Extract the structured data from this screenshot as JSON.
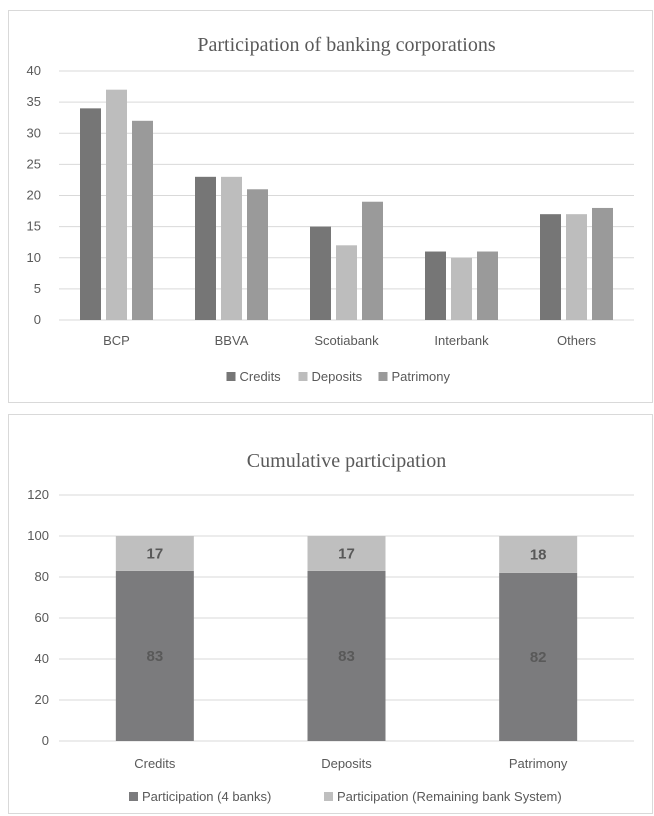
{
  "chart_data": [
    {
      "type": "bar",
      "title": "Participation of banking corporations",
      "categories": [
        "BCP",
        "BBVA",
        "Scotiabank",
        "Interbank",
        "Others"
      ],
      "series": [
        {
          "name": "Credits",
          "values": [
            34,
            23,
            15,
            11,
            17
          ],
          "color": "#767676"
        },
        {
          "name": "Deposits",
          "values": [
            37,
            23,
            12,
            10,
            17
          ],
          "color": "#bdbdbd"
        },
        {
          "name": "Patrimony",
          "values": [
            32,
            21,
            19,
            11,
            18
          ],
          "color": "#9a9a9a"
        }
      ],
      "ylim": [
        0,
        40
      ],
      "yticks": [
        0,
        5,
        10,
        15,
        20,
        25,
        30,
        35,
        40
      ],
      "grid": true,
      "legend": "bottom"
    },
    {
      "type": "bar",
      "stacked": true,
      "title": "Cumulative participation",
      "categories": [
        "Credits",
        "Deposits",
        "Patrimony"
      ],
      "series": [
        {
          "name": "Participation (4 banks)",
          "values": [
            83,
            83,
            82
          ],
          "color": "#7b7b7d"
        },
        {
          "name": "Participation (Remaining bank System)",
          "values": [
            17,
            17,
            18
          ],
          "color": "#bfbfbf"
        }
      ],
      "ylim": [
        0,
        120
      ],
      "yticks": [
        0,
        20,
        40,
        60,
        80,
        100,
        120
      ],
      "grid": true,
      "legend": "bottom",
      "data_labels": true
    }
  ]
}
